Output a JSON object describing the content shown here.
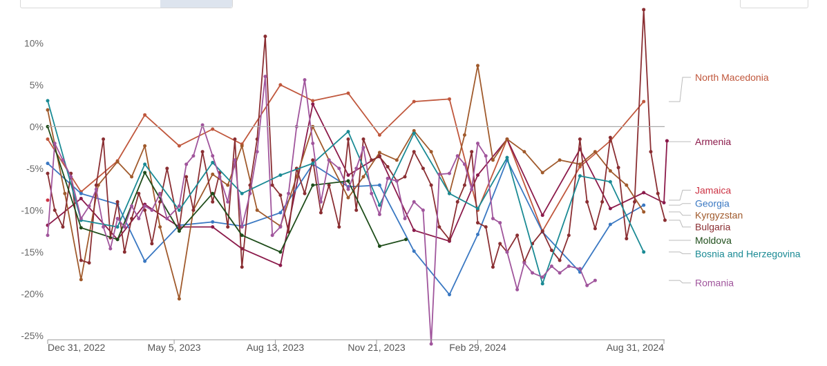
{
  "chart_data": {
    "type": "line",
    "title": "",
    "xlabel": "",
    "ylabel": "",
    "x_range": [
      "2022-12-31",
      "2024-08-31"
    ],
    "y_unit": "%",
    "ylim": [
      -25.5,
      13.5
    ],
    "y_ticks": [
      10,
      5,
      0,
      -5,
      -10,
      -15,
      -20,
      -25
    ],
    "y_tick_labels": [
      "10%",
      "5%",
      "0%",
      "-5%",
      "-10%",
      "-15%",
      "-20%",
      "-25%"
    ],
    "x_ticks": [
      "2022-12-31",
      "2023-05-05",
      "2023-08-13",
      "2023-11-21",
      "2024-02-29",
      "2024-08-31"
    ],
    "x_tick_labels": [
      "Dec 31, 2022",
      "May 5, 2023",
      "Aug 13, 2023",
      "Nov 21, 2023",
      "Feb 29, 2024",
      "Aug 31, 2024"
    ],
    "grid": false,
    "legend": "right",
    "series": [
      {
        "name": "North Macedonia",
        "color": "#c0573c",
        "x": [
          "2022-12-31",
          "2023-02-02",
          "2023-03-10",
          "2023-04-06",
          "2023-05-10",
          "2023-06-12",
          "2023-07-11",
          "2023-08-18",
          "2023-09-19",
          "2023-10-24",
          "2023-11-24",
          "2023-12-28",
          "2024-02-01",
          "2024-02-29",
          "2024-03-29",
          "2024-05-03",
          "2024-06-09",
          "2024-07-09",
          "2024-08-11"
        ],
        "y": [
          -1.5,
          -7.8,
          -4.1,
          1.4,
          -2.3,
          -0.3,
          -2.1,
          5,
          3.1,
          4,
          -1,
          3,
          3.3,
          -10,
          -1.5,
          -12.5,
          -4.8,
          -1.7,
          3
        ],
        "label_y": 5.9
      },
      {
        "name": "Armenia",
        "color": "#8b1a4a",
        "x": [
          "2022-12-31",
          "2023-02-02",
          "2023-03-10",
          "2023-04-06",
          "2023-05-10",
          "2023-06-12",
          "2023-07-11",
          "2023-08-18",
          "2023-09-19",
          "2023-10-24",
          "2023-11-24",
          "2023-12-28",
          "2024-02-01",
          "2024-02-29",
          "2024-03-29",
          "2024-05-03",
          "2024-06-09",
          "2024-07-09",
          "2024-08-11",
          "2024-08-31"
        ],
        "y": [
          -11.8,
          -8.6,
          -13.5,
          -9.3,
          -12,
          -12,
          -14.6,
          -16.6,
          2.7,
          -5.8,
          -3.5,
          -12.4,
          -13.7,
          -5.8,
          -1.5,
          -10.6,
          -2.7,
          -9.8,
          -7.9,
          -9.1
        ],
        "end_x": "2024-09-03",
        "end_y": -1.7,
        "label_y": -1.8
      },
      {
        "name": "Jamaica",
        "color": "#cc3344",
        "x": [
          "2022-12-31"
        ],
        "y": [
          -8.8
        ],
        "label_y": -7.6
      },
      {
        "name": "Georgia",
        "color": "#3a78c2",
        "x": [
          "2022-12-31",
          "2023-02-02",
          "2023-03-10",
          "2023-04-06",
          "2023-05-10",
          "2023-06-12",
          "2023-07-11",
          "2023-08-18",
          "2023-09-19",
          "2023-10-24",
          "2023-11-24",
          "2023-12-28",
          "2024-02-01",
          "2024-02-29",
          "2024-03-29",
          "2024-05-03",
          "2024-06-09",
          "2024-07-09",
          "2024-08-11"
        ],
        "y": [
          -4.4,
          -8,
          -9.3,
          -16.1,
          -11.8,
          -11.4,
          -11.9,
          -10.3,
          -4.5,
          -7.2,
          -7,
          -14.9,
          -20.1,
          -12.9,
          -4,
          -12.6,
          -17.4,
          -11.7,
          -9.4
        ],
        "label_y": -9.2
      },
      {
        "name": "Kyrgyzstan",
        "color": "#a05a2c",
        "x": [
          "2022-12-31",
          "2023-01-17",
          "2023-02-02",
          "2023-02-19",
          "2023-03-10",
          "2023-03-24",
          "2023-04-06",
          "2023-04-21",
          "2023-05-10",
          "2023-05-24",
          "2023-06-12",
          "2023-06-27",
          "2023-07-11",
          "2023-07-26",
          "2023-08-18",
          "2023-09-03",
          "2023-09-19",
          "2023-10-05",
          "2023-10-24",
          "2023-11-08",
          "2023-11-24",
          "2023-12-11",
          "2023-12-28",
          "2024-01-14",
          "2024-02-01",
          "2024-02-16",
          "2024-02-29",
          "2024-03-15",
          "2024-03-29",
          "2024-04-15",
          "2024-05-03",
          "2024-05-20",
          "2024-06-09",
          "2024-06-24",
          "2024-07-09",
          "2024-07-25",
          "2024-08-11"
        ],
        "y": [
          2,
          -8,
          -18.3,
          -7,
          -4.2,
          -6,
          -2.3,
          -12,
          -20.6,
          -10,
          -5.7,
          -7,
          -2.3,
          -10,
          -11.9,
          -6,
          0,
          -4,
          -8.5,
          -6,
          -3.1,
          -4,
          -0.5,
          -3,
          -8,
          -1,
          7.3,
          -4,
          -1.5,
          -3,
          -5.5,
          -4,
          -4.5,
          -3,
          -5.3,
          -7,
          -10.2
        ]
      },
      {
        "name": "Bulgaria",
        "color": "#8a2e32",
        "x": [
          "2022-12-31",
          "2023-01-07",
          "2023-01-15",
          "2023-01-23",
          "2023-02-02",
          "2023-02-10",
          "2023-02-17",
          "2023-02-24",
          "2023-03-03",
          "2023-03-10",
          "2023-03-17",
          "2023-03-24",
          "2023-03-31",
          "2023-04-06",
          "2023-04-13",
          "2023-04-21",
          "2023-04-28",
          "2023-05-10",
          "2023-05-17",
          "2023-05-24",
          "2023-06-02",
          "2023-06-12",
          "2023-06-19",
          "2023-06-27",
          "2023-07-04",
          "2023-07-11",
          "2023-07-19",
          "2023-07-26",
          "2023-08-03",
          "2023-08-10",
          "2023-08-18",
          "2023-08-26",
          "2023-09-03",
          "2023-09-11",
          "2023-09-19",
          "2023-09-27",
          "2023-10-05",
          "2023-10-15",
          "2023-10-24",
          "2023-11-01",
          "2023-11-08",
          "2023-11-16",
          "2023-11-24",
          "2023-12-02",
          "2023-12-11",
          "2023-12-19",
          "2023-12-28",
          "2024-01-06",
          "2024-01-14",
          "2024-01-22",
          "2024-02-01",
          "2024-02-09",
          "2024-02-16",
          "2024-02-23",
          "2024-02-29",
          "2024-03-08",
          "2024-03-15",
          "2024-03-22",
          "2024-03-29",
          "2024-04-08",
          "2024-04-15",
          "2024-04-23",
          "2024-05-03",
          "2024-05-12",
          "2024-05-20",
          "2024-05-29",
          "2024-06-09",
          "2024-06-16",
          "2024-06-24",
          "2024-07-01",
          "2024-07-09",
          "2024-07-17",
          "2024-07-25",
          "2024-08-02",
          "2024-08-11",
          "2024-08-18",
          "2024-08-25",
          "2024-09-01"
        ],
        "y": [
          -5.6,
          -10,
          -12,
          -5.6,
          -16,
          -16.3,
          -7,
          -1.5,
          -13.3,
          -9,
          -15,
          -11,
          -8,
          -10,
          -14,
          -9,
          -5,
          -12.2,
          -6,
          -10,
          -3,
          -9,
          -5.5,
          -12,
          -1.5,
          -16.8,
          -7,
          -1.5,
          10.8,
          -7,
          -8.2,
          -12.6,
          -5,
          -8,
          -4,
          -10.3,
          -7,
          -12,
          -1.5,
          -10,
          -1.5,
          -4,
          -3.6,
          -4.8,
          -6.5,
          -6,
          -3,
          -5,
          -7,
          -12,
          -13.5,
          -9,
          -7,
          -3,
          -11.5,
          -12,
          -16.8,
          -14,
          -15,
          -13,
          -16.2,
          -14,
          -12.5,
          -14.8,
          -16,
          -13,
          -1.5,
          -9,
          -12.2,
          -9,
          -1.3,
          -4.9,
          -13.4,
          -9,
          14.0,
          -3,
          -8,
          -11.2
        ]
      },
      {
        "name": "Moldova",
        "color": "#1e4d1a",
        "x": [
          "2022-12-31",
          "2023-02-02",
          "2023-03-10",
          "2023-04-06",
          "2023-05-10",
          "2023-06-12",
          "2023-07-11",
          "2023-08-18",
          "2023-09-19",
          "2023-10-24",
          "2023-11-24",
          "2023-12-20"
        ],
        "y": [
          0,
          -12.1,
          -13.5,
          -5.5,
          -12.5,
          -8,
          -13,
          -15,
          -7,
          -6.5,
          -14.3,
          -13.5
        ],
        "label_y": -13.6
      },
      {
        "name": "Bosnia and Herzegovina",
        "color": "#1a8a94",
        "x": [
          "2022-12-31",
          "2023-02-02",
          "2023-03-10",
          "2023-04-06",
          "2023-05-10",
          "2023-06-12",
          "2023-07-11",
          "2023-08-18",
          "2023-09-19",
          "2023-10-24",
          "2023-11-24",
          "2023-12-28",
          "2024-02-01",
          "2024-02-29",
          "2024-03-29",
          "2024-05-03",
          "2024-06-09",
          "2024-07-09",
          "2024-08-11"
        ],
        "y": [
          3.1,
          -11.2,
          -12,
          -4.5,
          -10,
          -4.3,
          -8,
          -5.8,
          -4.4,
          -0.6,
          -9.4,
          -0.8,
          -8,
          -9.8,
          -3.7,
          -18.8,
          -5.9,
          -6.6,
          -15
        ],
        "label_y": -15.2
      },
      {
        "name": "Romania",
        "color": "#a0559c",
        "x": [
          "2022-12-31",
          "2023-01-07",
          "2023-01-15",
          "2023-01-23",
          "2023-02-02",
          "2023-02-10",
          "2023-02-17",
          "2023-02-24",
          "2023-03-03",
          "2023-03-10",
          "2023-03-17",
          "2023-03-24",
          "2023-03-31",
          "2023-04-06",
          "2023-04-13",
          "2023-04-21",
          "2023-04-28",
          "2023-05-10",
          "2023-05-17",
          "2023-05-24",
          "2023-06-02",
          "2023-06-12",
          "2023-06-19",
          "2023-06-27",
          "2023-07-04",
          "2023-07-11",
          "2023-07-19",
          "2023-07-26",
          "2023-08-03",
          "2023-08-10",
          "2023-08-18",
          "2023-08-26",
          "2023-09-03",
          "2023-09-11",
          "2023-09-19",
          "2023-09-27",
          "2023-10-05",
          "2023-10-15",
          "2023-10-24",
          "2023-11-01",
          "2023-11-08",
          "2023-11-16",
          "2023-11-24",
          "2023-12-02",
          "2023-12-11",
          "2023-12-19",
          "2023-12-28",
          "2024-01-06",
          "2024-01-14",
          "2024-01-22",
          "2024-02-01",
          "2024-02-09",
          "2024-02-16",
          "2024-02-23",
          "2024-02-29",
          "2024-03-08",
          "2024-03-15",
          "2024-03-22",
          "2024-03-29",
          "2024-04-08",
          "2024-04-15",
          "2024-04-23",
          "2024-05-03",
          "2024-05-12",
          "2024-05-20",
          "2024-05-29",
          "2024-06-09",
          "2024-06-16",
          "2024-06-24"
        ],
        "y": [
          -13,
          -2,
          -4,
          -6,
          -11,
          -9.5,
          -7.5,
          -12,
          -14.6,
          -11,
          -12,
          -9.5,
          -11,
          -9.5,
          -10,
          -8,
          -11,
          -9.5,
          -4.5,
          -3.5,
          0.2,
          -3.5,
          -6,
          -9,
          -4,
          -12,
          -8,
          -3,
          6,
          -13,
          -12,
          -8,
          0,
          5.6,
          -2,
          -9,
          -4,
          -5,
          -7.5,
          -5,
          -2.5,
          -8,
          -10.5,
          -6.2,
          -6.5,
          -11,
          -9,
          -10,
          -26,
          -5.7,
          -5.6,
          -3.5,
          -4.5,
          -7.5,
          -2,
          -3.5,
          -11,
          -11.5,
          -15,
          -19.5,
          -16.3,
          -17.5,
          -18,
          -16.7,
          -17.5,
          -16.7,
          -17,
          -19,
          -18.4
        ],
        "label_y": -18.7
      }
    ]
  }
}
